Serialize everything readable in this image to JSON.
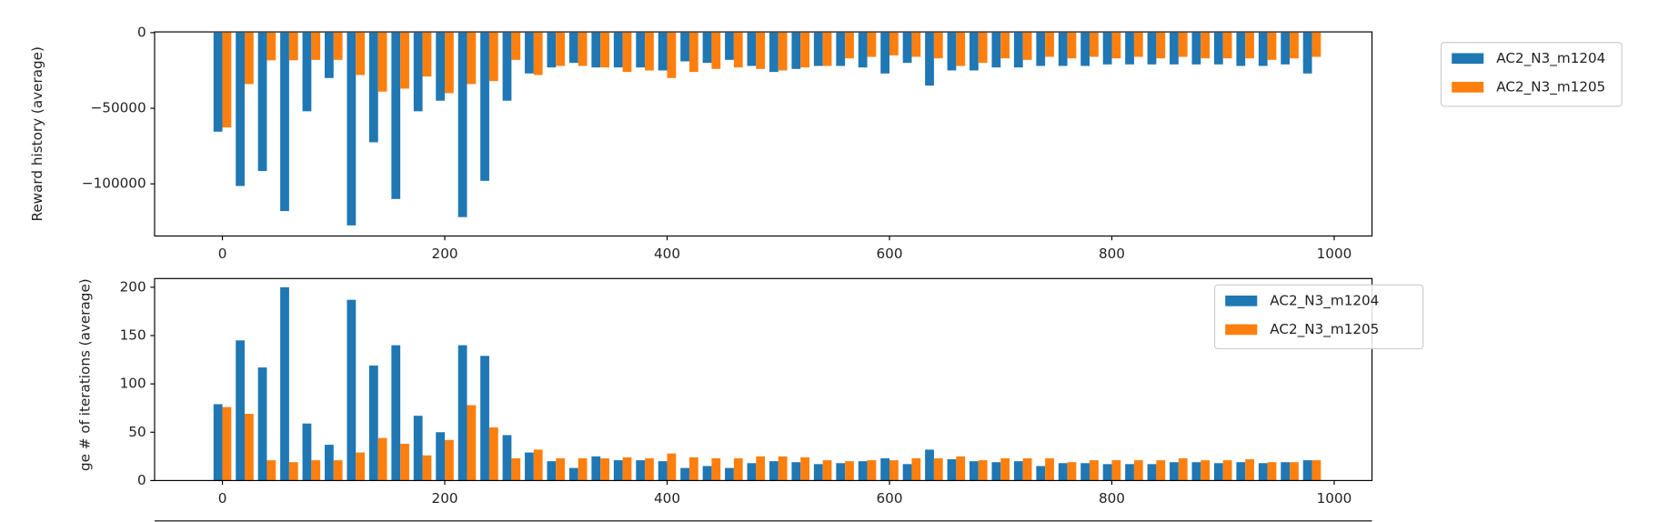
{
  "chart_data": [
    {
      "type": "bar",
      "ylabel": "Reward history (average)",
      "x": [
        0,
        20,
        40,
        60,
        80,
        100,
        120,
        140,
        160,
        180,
        200,
        220,
        240,
        260,
        280,
        300,
        320,
        340,
        360,
        380,
        400,
        420,
        440,
        460,
        480,
        500,
        520,
        540,
        560,
        580,
        600,
        620,
        640,
        660,
        680,
        700,
        720,
        740,
        760,
        780,
        800,
        820,
        840,
        860,
        880,
        900,
        920,
        940,
        960,
        980
      ],
      "series": [
        {
          "name": "AC2_N3_m1204",
          "color": "#1f77b4",
          "values": [
            -65500,
            -101400,
            -91500,
            -118000,
            -52000,
            -30000,
            -127500,
            -72500,
            -110000,
            -52000,
            -45000,
            -122000,
            -98000,
            -45000,
            -27000,
            -23000,
            -20000,
            -23000,
            -23000,
            -23000,
            -25000,
            -19000,
            -20000,
            -18000,
            -22000,
            -26000,
            -24000,
            -22000,
            -22000,
            -23000,
            -27000,
            -20000,
            -35000,
            -25000,
            -25000,
            -23000,
            -23000,
            -22000,
            -22000,
            -22000,
            -21000,
            -21000,
            -21000,
            -21000,
            -21000,
            -21000,
            -22000,
            -22000,
            -21000,
            -27000
          ]
        },
        {
          "name": "AC2_N3_m1205",
          "color": "#ff7f0e",
          "values": [
            -62700,
            -34000,
            -18300,
            -18300,
            -18000,
            -18000,
            -28000,
            -39000,
            -37000,
            -29000,
            -40000,
            -34000,
            -32000,
            -18000,
            -28000,
            -22000,
            -22000,
            -23000,
            -26000,
            -25000,
            -30000,
            -26000,
            -24000,
            -23000,
            -24000,
            -25000,
            -23000,
            -22000,
            -17000,
            -16000,
            -15000,
            -16000,
            -17000,
            -22000,
            -20000,
            -17000,
            -18000,
            -16000,
            -17000,
            -16000,
            -17000,
            -16000,
            -17000,
            -16000,
            -17000,
            -17000,
            -17000,
            -18000,
            -17000,
            -16000
          ]
        }
      ],
      "xlim": [
        -61,
        1034
      ],
      "ylim": [
        -134500,
        500
      ],
      "xticks": [
        0,
        200,
        400,
        600,
        800,
        1000
      ],
      "yticks": [
        0,
        {
          "value": -50000,
          "label": "−50000"
        },
        {
          "value": -100000,
          "label": "−100000"
        }
      ],
      "legend": "outside right"
    },
    {
      "type": "bar",
      "ylabel": "ge # of iterations (average)",
      "x": [
        0,
        20,
        40,
        60,
        80,
        100,
        120,
        140,
        160,
        180,
        200,
        220,
        240,
        260,
        280,
        300,
        320,
        340,
        360,
        380,
        400,
        420,
        440,
        460,
        480,
        500,
        520,
        540,
        560,
        580,
        600,
        620,
        640,
        660,
        680,
        700,
        720,
        740,
        760,
        780,
        800,
        820,
        840,
        860,
        880,
        900,
        920,
        940,
        960,
        980
      ],
      "series": [
        {
          "name": "AC2_N3_m1204",
          "color": "#1f77b4",
          "values": [
            79,
            145,
            117,
            200,
            59,
            37,
            187,
            119,
            140,
            67,
            50,
            140,
            129,
            47,
            29,
            20,
            13,
            25,
            21,
            21,
            20,
            13,
            15,
            13,
            18,
            20,
            19,
            17,
            18,
            20,
            23,
            17,
            32,
            22,
            20,
            19,
            20,
            15,
            18,
            18,
            17,
            17,
            17,
            19,
            19,
            18,
            19,
            18,
            19,
            21
          ]
        },
        {
          "name": "AC2_N3_m1205",
          "color": "#ff7f0e",
          "values": [
            76,
            69,
            21,
            19,
            21,
            21,
            29,
            44,
            38,
            26,
            42,
            78,
            55,
            23,
            32,
            23,
            23,
            23,
            24,
            23,
            28,
            24,
            23,
            23,
            25,
            25,
            24,
            21,
            20,
            21,
            21,
            23,
            23,
            25,
            21,
            23,
            23,
            23,
            19,
            21,
            21,
            21,
            21,
            23,
            21,
            21,
            22,
            19,
            19,
            21
          ]
        }
      ],
      "xlim": [
        -61,
        1034
      ],
      "ylim": [
        0,
        209
      ],
      "xticks": [
        0,
        200,
        400,
        600,
        800,
        1000
      ],
      "yticks": [
        0,
        50,
        100,
        150,
        200
      ],
      "legend": "upper right"
    }
  ]
}
